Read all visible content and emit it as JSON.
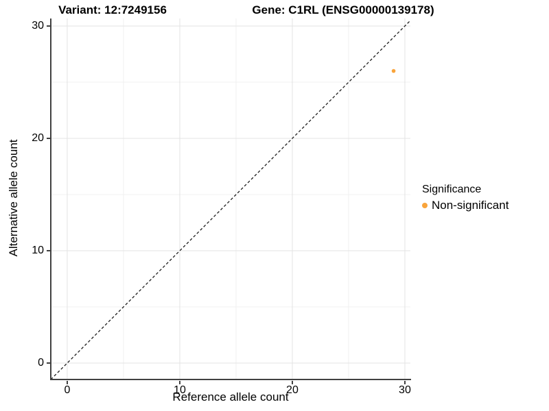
{
  "titles": {
    "variant": "Variant: 12:7249156",
    "gene": "Gene: C1RL (ENSG00000139178)"
  },
  "axes": {
    "x_label": "Reference allele count",
    "y_label": "Alternative allele count"
  },
  "legend": {
    "title": "Significance",
    "items": [
      {
        "label": "Non-significant",
        "color": "#F9A43B"
      }
    ]
  },
  "colors": {
    "point": "#F9A43B",
    "axis_line": "#404040",
    "grid_major": "#E3E3E3",
    "grid_minor": "#F0F0F0",
    "reference_line": "#1A1A1A",
    "background": "#FFFFFF"
  },
  "chart_data": {
    "type": "scatter",
    "title": "Variant: 12:7249156  |  Gene: C1RL (ENSG00000139178)",
    "xlabel": "Reference allele count",
    "ylabel": "Alternative allele count",
    "xlim": [
      -1.46,
      30.49
    ],
    "ylim": [
      -1.46,
      30.67
    ],
    "x_ticks": [
      0,
      10,
      20,
      30
    ],
    "y_ticks": [
      0,
      10,
      20,
      30
    ],
    "x_minor_ticks": [
      5,
      15,
      25
    ],
    "y_minor_ticks": [
      5,
      15,
      25
    ],
    "grid": true,
    "legend_position": "right",
    "series": [
      {
        "name": "Non-significant",
        "color": "#F9A43B",
        "points": [
          [
            29,
            26
          ]
        ]
      }
    ],
    "reference_line": {
      "slope": 1,
      "intercept": 0,
      "style": "dashed",
      "color": "#1A1A1A"
    }
  }
}
